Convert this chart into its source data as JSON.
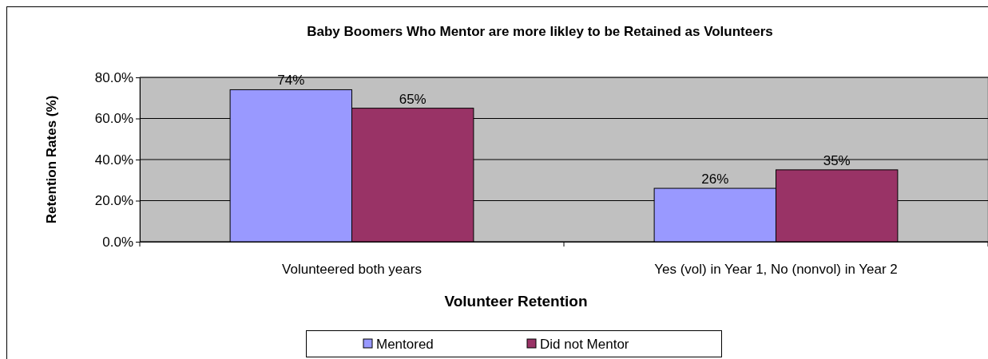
{
  "chart_data": {
    "type": "bar",
    "title": "Baby Boomers Who Mentor are more likley to be Retained as Volunteers",
    "xlabel": "Volunteer Retention",
    "ylabel": "Retention Rates (%)",
    "categories": [
      "Volunteered both years",
      "Yes (vol) in Year 1, No (nonvol) in Year 2"
    ],
    "series": [
      {
        "name": "Mentored",
        "color": "#9999ff",
        "values": [
          74,
          26
        ],
        "value_labels": [
          "74%",
          "26%"
        ]
      },
      {
        "name": "Did not Mentor",
        "color": "#993366",
        "values": [
          65,
          35
        ],
        "value_labels": [
          "65%",
          "35%"
        ]
      }
    ],
    "ylim": [
      0,
      80
    ],
    "yticks": [
      {
        "value": 0,
        "label": "0.0%"
      },
      {
        "value": 20,
        "label": "20.0%"
      },
      {
        "value": 40,
        "label": "40.0%"
      },
      {
        "value": 60,
        "label": "60.0%"
      },
      {
        "value": 80,
        "label": "80.0%"
      }
    ],
    "grid": "y",
    "legend": "bottom"
  }
}
